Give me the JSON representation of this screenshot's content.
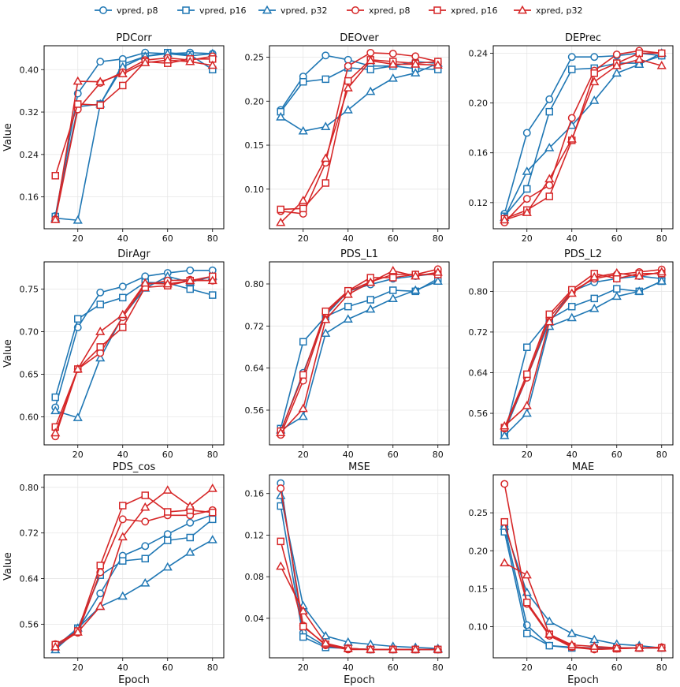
{
  "legend": [
    {
      "name": "vpred, p8",
      "color": "#1f77b4",
      "marker": "circle"
    },
    {
      "name": "vpred, p16",
      "color": "#1f77b4",
      "marker": "square"
    },
    {
      "name": "vpred, p32",
      "color": "#1f77b4",
      "marker": "triangle"
    },
    {
      "name": "xpred, p8",
      "color": "#d62728",
      "marker": "circle"
    },
    {
      "name": "xpred, p16",
      "color": "#d62728",
      "marker": "square"
    },
    {
      "name": "xpred, p32",
      "color": "#d62728",
      "marker": "triangle"
    }
  ],
  "chart_data": [
    {
      "type": "line",
      "title": "PDCorr",
      "xlabel": "",
      "ylabel": "Value",
      "x": [
        10,
        20,
        30,
        40,
        50,
        60,
        70,
        80
      ],
      "xticks": [
        20,
        40,
        60,
        80
      ],
      "yticks": [
        0.16,
        0.24,
        0.32,
        0.4
      ],
      "ytick_labels": [
        "0.16",
        "0.24",
        "0.32",
        "0.40"
      ],
      "xlim": [
        5,
        85
      ],
      "ylim": [
        0.1,
        0.445
      ],
      "series": [
        {
          "name": "vpred, p8",
          "values": [
            0.124,
            0.355,
            0.415,
            0.42,
            0.432,
            0.43,
            0.432,
            0.43
          ]
        },
        {
          "name": "vpred, p16",
          "values": [
            0.123,
            0.33,
            0.335,
            0.41,
            0.425,
            0.432,
            0.428,
            0.4
          ]
        },
        {
          "name": "vpred, p32",
          "values": [
            0.12,
            0.116,
            0.335,
            0.405,
            0.425,
            0.43,
            0.426,
            0.43
          ]
        },
        {
          "name": "xpred, p8",
          "values": [
            0.118,
            0.325,
            0.375,
            0.395,
            0.418,
            0.422,
            0.418,
            0.425
          ]
        },
        {
          "name": "xpred, p16",
          "values": [
            0.2,
            0.335,
            0.333,
            0.37,
            0.415,
            0.412,
            0.42,
            0.42
          ]
        },
        {
          "name": "xpred, p32",
          "values": [
            0.117,
            0.378,
            0.377,
            0.392,
            0.413,
            0.418,
            0.415,
            0.408
          ]
        }
      ]
    },
    {
      "type": "line",
      "title": "DEOver",
      "xlabel": "",
      "ylabel": "",
      "x": [
        10,
        20,
        30,
        40,
        50,
        60,
        70,
        80
      ],
      "xticks": [
        20,
        40,
        60,
        80
      ],
      "yticks": [
        0.1,
        0.15,
        0.2,
        0.25
      ],
      "ytick_labels": [
        "0.10",
        "0.15",
        "0.20",
        "0.25"
      ],
      "xlim": [
        5,
        85
      ],
      "ylim": [
        0.055,
        0.263
      ],
      "series": [
        {
          "name": "vpred, p8",
          "values": [
            0.19,
            0.228,
            0.252,
            0.247,
            0.24,
            0.24,
            0.245,
            0.243
          ]
        },
        {
          "name": "vpred, p16",
          "values": [
            0.188,
            0.222,
            0.225,
            0.238,
            0.236,
            0.24,
            0.237,
            0.236
          ]
        },
        {
          "name": "vpred, p32",
          "values": [
            0.182,
            0.166,
            0.171,
            0.19,
            0.211,
            0.226,
            0.232,
            0.243
          ]
        },
        {
          "name": "xpred, p8",
          "values": [
            0.075,
            0.072,
            0.13,
            0.24,
            0.255,
            0.254,
            0.251,
            0.245
          ]
        },
        {
          "name": "xpred, p16",
          "values": [
            0.077,
            0.078,
            0.107,
            0.223,
            0.247,
            0.245,
            0.243,
            0.245
          ]
        },
        {
          "name": "xpred, p32",
          "values": [
            0.062,
            0.087,
            0.135,
            0.215,
            0.246,
            0.242,
            0.242,
            0.241
          ]
        }
      ]
    },
    {
      "type": "line",
      "title": "DEPrec",
      "xlabel": "",
      "ylabel": "",
      "x": [
        10,
        20,
        30,
        40,
        50,
        60,
        70,
        80
      ],
      "xticks": [
        20,
        40,
        60,
        80
      ],
      "yticks": [
        0.12,
        0.16,
        0.2,
        0.24
      ],
      "ytick_labels": [
        "0.12",
        "0.16",
        "0.20",
        "0.24"
      ],
      "xlim": [
        5,
        85
      ],
      "ylim": [
        0.099,
        0.246
      ],
      "series": [
        {
          "name": "vpred, p8",
          "values": [
            0.111,
            0.176,
            0.203,
            0.237,
            0.237,
            0.238,
            0.24,
            0.238
          ]
        },
        {
          "name": "vpred, p16",
          "values": [
            0.109,
            0.131,
            0.193,
            0.227,
            0.228,
            0.232,
            0.232,
            0.238
          ]
        },
        {
          "name": "vpred, p32",
          "values": [
            0.108,
            0.145,
            0.164,
            0.182,
            0.202,
            0.224,
            0.231,
            0.24
          ]
        },
        {
          "name": "xpred, p8",
          "values": [
            0.104,
            0.123,
            0.134,
            0.188,
            0.226,
            0.239,
            0.242,
            0.24
          ]
        },
        {
          "name": "xpred, p16",
          "values": [
            0.107,
            0.114,
            0.125,
            0.17,
            0.224,
            0.232,
            0.24,
            0.24
          ]
        },
        {
          "name": "xpred, p32",
          "values": [
            0.106,
            0.112,
            0.139,
            0.171,
            0.217,
            0.23,
            0.235,
            0.23
          ]
        }
      ]
    },
    {
      "type": "line",
      "title": "DirAgr",
      "xlabel": "",
      "ylabel": "Value",
      "x": [
        10,
        20,
        30,
        40,
        50,
        60,
        70,
        80
      ],
      "xticks": [
        20,
        40,
        60,
        80
      ],
      "yticks": [
        0.6,
        0.65,
        0.7,
        0.75
      ],
      "ytick_labels": [
        "0.60",
        "0.65",
        "0.70",
        "0.75"
      ],
      "xlim": [
        5,
        85
      ],
      "ylim": [
        0.567,
        0.782
      ],
      "series": [
        {
          "name": "vpred, p8",
          "values": [
            0.611,
            0.705,
            0.746,
            0.753,
            0.765,
            0.769,
            0.772,
            0.772
          ]
        },
        {
          "name": "vpred, p16",
          "values": [
            0.623,
            0.715,
            0.732,
            0.74,
            0.758,
            0.757,
            0.75,
            0.743
          ]
        },
        {
          "name": "vpred, p32",
          "values": [
            0.607,
            0.599,
            0.669,
            0.718,
            0.751,
            0.765,
            0.758,
            0.765
          ]
        },
        {
          "name": "xpred, p8",
          "values": [
            0.577,
            0.656,
            0.675,
            0.717,
            0.755,
            0.76,
            0.761,
            0.76
          ]
        },
        {
          "name": "xpred, p16",
          "values": [
            0.588,
            0.656,
            0.682,
            0.705,
            0.752,
            0.754,
            0.76,
            0.765
          ]
        },
        {
          "name": "xpred, p32",
          "values": [
            0.581,
            0.656,
            0.7,
            0.72,
            0.757,
            0.756,
            0.76,
            0.76
          ]
        }
      ]
    },
    {
      "type": "line",
      "title": "PDS_L1",
      "xlabel": "",
      "ylabel": "",
      "x": [
        10,
        20,
        30,
        40,
        50,
        60,
        70,
        80
      ],
      "xticks": [
        20,
        40,
        60,
        80
      ],
      "yticks": [
        0.56,
        0.64,
        0.72,
        0.8
      ],
      "ytick_labels": [
        "0.56",
        "0.64",
        "0.72",
        "0.80"
      ],
      "xlim": [
        5,
        85
      ],
      "ylim": [
        0.494,
        0.842
      ],
      "series": [
        {
          "name": "vpred, p8",
          "values": [
            0.519,
            0.631,
            0.74,
            0.786,
            0.799,
            0.81,
            0.815,
            0.82
          ]
        },
        {
          "name": "vpred, p16",
          "values": [
            0.525,
            0.69,
            0.738,
            0.757,
            0.77,
            0.788,
            0.786,
            0.81
          ]
        },
        {
          "name": "vpred, p32",
          "values": [
            0.522,
            0.548,
            0.706,
            0.733,
            0.752,
            0.772,
            0.788,
            0.805
          ]
        },
        {
          "name": "xpred, p8",
          "values": [
            0.513,
            0.616,
            0.744,
            0.786,
            0.804,
            0.818,
            0.818,
            0.828
          ]
        },
        {
          "name": "xpred, p16",
          "values": [
            0.52,
            0.627,
            0.748,
            0.787,
            0.812,
            0.812,
            0.818,
            0.818
          ]
        },
        {
          "name": "xpred, p32",
          "values": [
            0.517,
            0.563,
            0.732,
            0.78,
            0.803,
            0.825,
            0.815,
            0.822
          ]
        }
      ]
    },
    {
      "type": "line",
      "title": "PDS_L2",
      "xlabel": "",
      "ylabel": "",
      "x": [
        10,
        20,
        30,
        40,
        50,
        60,
        70,
        80
      ],
      "xticks": [
        20,
        40,
        60,
        80
      ],
      "yticks": [
        0.56,
        0.64,
        0.72,
        0.8
      ],
      "ytick_labels": [
        "0.56",
        "0.64",
        "0.72",
        "0.80"
      ],
      "xlim": [
        5,
        85
      ],
      "ylim": [
        0.498,
        0.858
      ],
      "series": [
        {
          "name": "vpred, p8",
          "values": [
            0.524,
            0.631,
            0.74,
            0.8,
            0.818,
            0.825,
            0.83,
            0.825
          ]
        },
        {
          "name": "vpred, p16",
          "values": [
            0.519,
            0.69,
            0.745,
            0.77,
            0.786,
            0.805,
            0.8,
            0.82
          ]
        },
        {
          "name": "vpred, p32",
          "values": [
            0.516,
            0.56,
            0.731,
            0.748,
            0.766,
            0.79,
            0.8,
            0.82
          ]
        },
        {
          "name": "xpred, p8",
          "values": [
            0.53,
            0.63,
            0.748,
            0.8,
            0.825,
            0.833,
            0.838,
            0.843
          ]
        },
        {
          "name": "xpred, p16",
          "values": [
            0.532,
            0.637,
            0.755,
            0.803,
            0.835,
            0.825,
            0.835,
            0.835
          ]
        },
        {
          "name": "xpred, p32",
          "values": [
            0.535,
            0.575,
            0.74,
            0.796,
            0.828,
            0.836,
            0.83,
            0.838
          ]
        }
      ]
    },
    {
      "type": "line",
      "title": "PDS_cos",
      "xlabel": "Epoch",
      "ylabel": "Value",
      "x": [
        10,
        20,
        30,
        40,
        50,
        60,
        70,
        80
      ],
      "xticks": [
        20,
        40,
        60,
        80
      ],
      "yticks": [
        0.56,
        0.64,
        0.72,
        0.8
      ],
      "ytick_labels": [
        "0.56",
        "0.64",
        "0.72",
        "0.80"
      ],
      "xlim": [
        5,
        85
      ],
      "ylim": [
        0.501,
        0.822
      ],
      "series": [
        {
          "name": "vpred, p8",
          "values": [
            0.516,
            0.55,
            0.614,
            0.68,
            0.697,
            0.718,
            0.738,
            0.752
          ]
        },
        {
          "name": "vpred, p16",
          "values": [
            0.52,
            0.553,
            0.646,
            0.671,
            0.675,
            0.707,
            0.712,
            0.744
          ]
        },
        {
          "name": "vpred, p32",
          "values": [
            0.515,
            0.553,
            0.591,
            0.609,
            0.632,
            0.66,
            0.686,
            0.708
          ]
        },
        {
          "name": "xpred, p8",
          "values": [
            0.525,
            0.545,
            0.651,
            0.744,
            0.74,
            0.751,
            0.751,
            0.76
          ]
        },
        {
          "name": "xpred, p16",
          "values": [
            0.524,
            0.548,
            0.663,
            0.768,
            0.786,
            0.757,
            0.76,
            0.756
          ]
        },
        {
          "name": "xpred, p32",
          "values": [
            0.52,
            0.546,
            0.591,
            0.713,
            0.765,
            0.795,
            0.767,
            0.798
          ]
        }
      ]
    },
    {
      "type": "line",
      "title": "MSE",
      "xlabel": "Epoch",
      "ylabel": "",
      "x": [
        10,
        20,
        30,
        40,
        50,
        60,
        70,
        80
      ],
      "xticks": [
        20,
        40,
        60,
        80
      ],
      "yticks": [
        0.04,
        0.08,
        0.12,
        0.16
      ],
      "ytick_labels": [
        "0.04",
        "0.08",
        "0.12",
        "0.16"
      ],
      "xlim": [
        5,
        85
      ],
      "ylim": [
        0.002,
        0.178
      ],
      "series": [
        {
          "name": "vpred, p8",
          "values": [
            0.17,
            0.026,
            0.013,
            0.011,
            0.01,
            0.01,
            0.01,
            0.01
          ]
        },
        {
          "name": "vpred, p16",
          "values": [
            0.148,
            0.022,
            0.012,
            0.011,
            0.01,
            0.01,
            0.01,
            0.01
          ]
        },
        {
          "name": "vpred, p32",
          "values": [
            0.158,
            0.052,
            0.023,
            0.017,
            0.015,
            0.013,
            0.012,
            0.011
          ]
        },
        {
          "name": "xpred, p8",
          "values": [
            0.165,
            0.033,
            0.014,
            0.01,
            0.01,
            0.01,
            0.01,
            0.01
          ]
        },
        {
          "name": "xpred, p16",
          "values": [
            0.114,
            0.032,
            0.015,
            0.011,
            0.01,
            0.01,
            0.01,
            0.01
          ]
        },
        {
          "name": "xpred, p32",
          "values": [
            0.09,
            0.047,
            0.016,
            0.011,
            0.01,
            0.01,
            0.01,
            0.01
          ]
        }
      ]
    },
    {
      "type": "line",
      "title": "MAE",
      "xlabel": "Epoch",
      "ylabel": "",
      "x": [
        10,
        20,
        30,
        40,
        50,
        60,
        70,
        80
      ],
      "xticks": [
        20,
        40,
        60,
        80
      ],
      "yticks": [
        0.1,
        0.15,
        0.2,
        0.25
      ],
      "ytick_labels": [
        "0.10",
        "0.15",
        "0.20",
        "0.25"
      ],
      "xlim": [
        5,
        85
      ],
      "ylim": [
        0.059,
        0.3
      ],
      "series": [
        {
          "name": "vpred, p8",
          "values": [
            0.232,
            0.102,
            0.075,
            0.073,
            0.072,
            0.072,
            0.072,
            0.072
          ]
        },
        {
          "name": "vpred, p16",
          "values": [
            0.225,
            0.091,
            0.075,
            0.072,
            0.072,
            0.072,
            0.072,
            0.072
          ]
        },
        {
          "name": "vpred, p32",
          "values": [
            0.232,
            0.145,
            0.107,
            0.091,
            0.083,
            0.077,
            0.075,
            0.072
          ]
        },
        {
          "name": "xpred, p8",
          "values": [
            0.288,
            0.13,
            0.088,
            0.073,
            0.07,
            0.071,
            0.072,
            0.073
          ]
        },
        {
          "name": "xpred, p16",
          "values": [
            0.238,
            0.132,
            0.09,
            0.074,
            0.071,
            0.071,
            0.072,
            0.072
          ]
        },
        {
          "name": "xpred, p32",
          "values": [
            0.184,
            0.168,
            0.09,
            0.076,
            0.074,
            0.072,
            0.072,
            0.072
          ]
        }
      ]
    }
  ]
}
